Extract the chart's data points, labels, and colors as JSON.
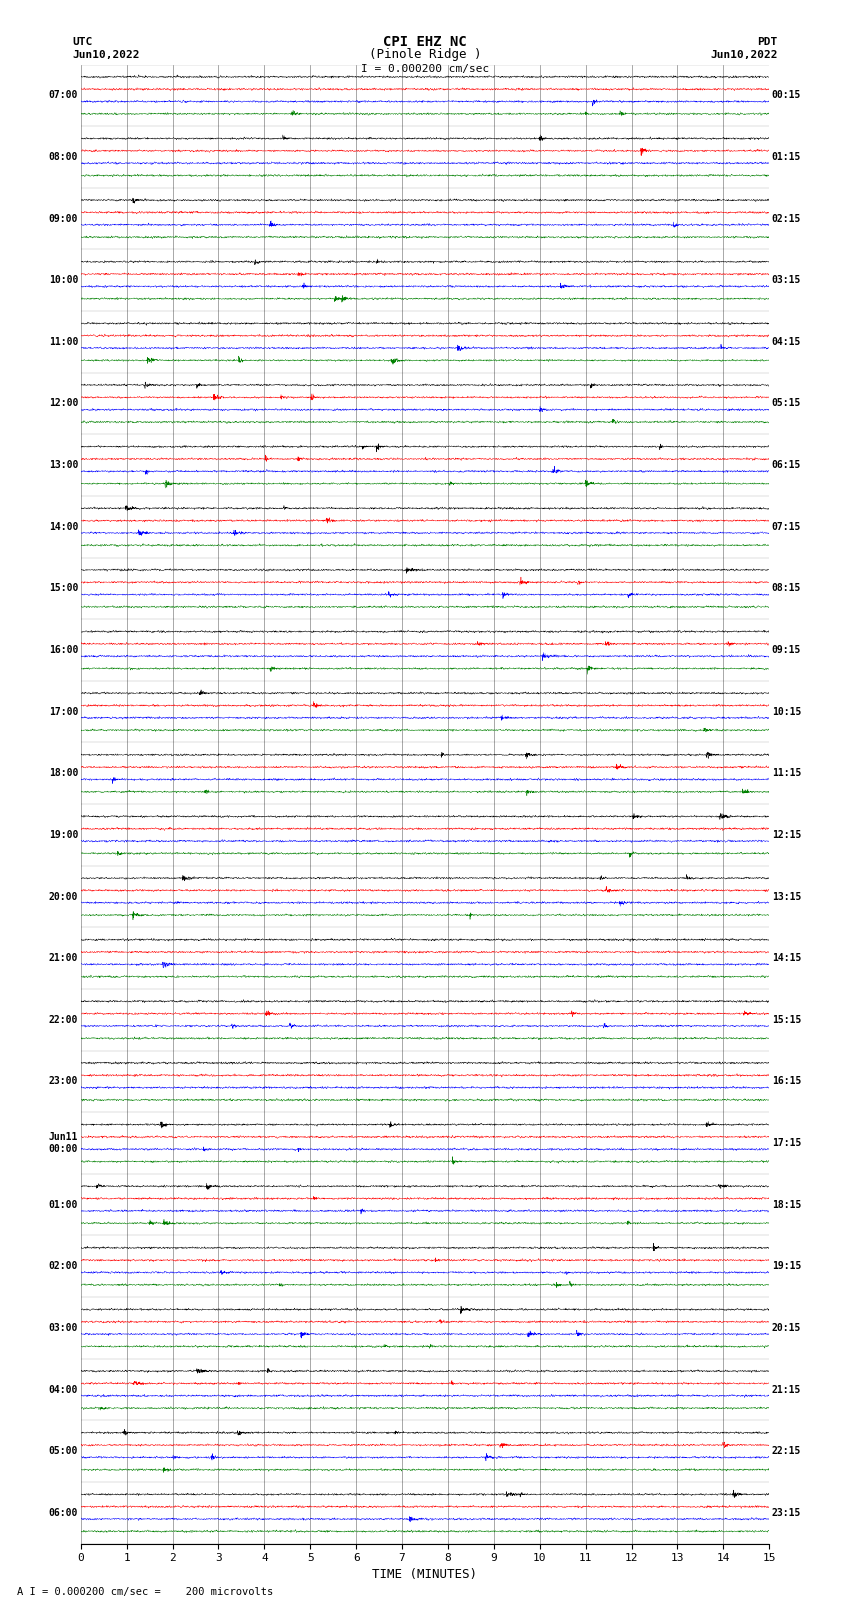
{
  "title_line1": "CPI EHZ NC",
  "title_line2": "(Pinole Ridge )",
  "scale_label": "I = 0.000200 cm/sec",
  "utc_label": "UTC",
  "utc_date": "Jun10,2022",
  "pdt_label": "PDT",
  "pdt_date": "Jun10,2022",
  "xlabel": "TIME (MINUTES)",
  "footer": "A I = 0.000200 cm/sec =    200 microvolts",
  "left_times": [
    "07:00",
    "08:00",
    "09:00",
    "10:00",
    "11:00",
    "12:00",
    "13:00",
    "14:00",
    "15:00",
    "16:00",
    "17:00",
    "18:00",
    "19:00",
    "20:00",
    "21:00",
    "22:00",
    "23:00",
    "Jun11\n00:00",
    "01:00",
    "02:00",
    "03:00",
    "04:00",
    "05:00",
    "06:00"
  ],
  "right_times": [
    "00:15",
    "01:15",
    "02:15",
    "03:15",
    "04:15",
    "05:15",
    "06:15",
    "07:15",
    "08:15",
    "09:15",
    "10:15",
    "11:15",
    "12:15",
    "13:15",
    "14:15",
    "15:15",
    "16:15",
    "17:15",
    "18:15",
    "19:15",
    "20:15",
    "21:15",
    "22:15",
    "23:15"
  ],
  "n_rows": 24,
  "traces_per_row": 4,
  "colors": [
    "black",
    "red",
    "blue",
    "green"
  ],
  "bg_color": "white",
  "x_min": 0,
  "x_max": 15,
  "x_ticks": [
    0,
    1,
    2,
    3,
    4,
    5,
    6,
    7,
    8,
    9,
    10,
    11,
    12,
    13,
    14,
    15
  ],
  "figsize": [
    8.5,
    16.13
  ],
  "dpi": 100,
  "noise_amplitude": 0.018,
  "trace_amplitude": 0.1
}
